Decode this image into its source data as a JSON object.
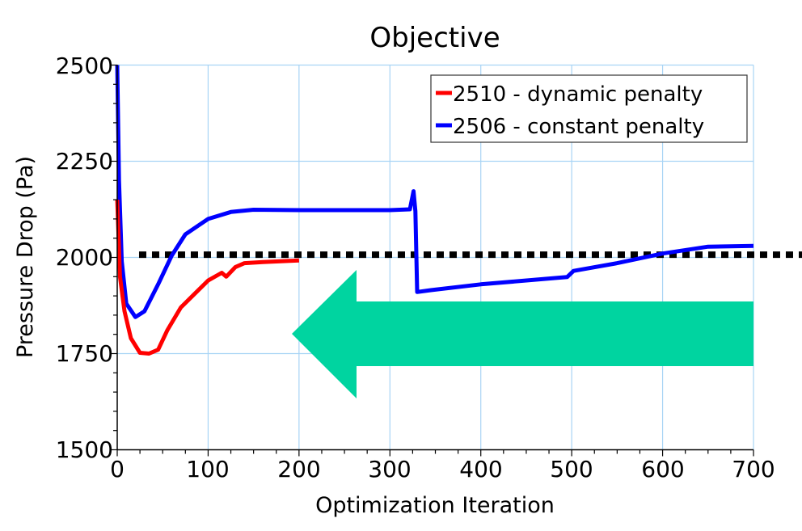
{
  "chart_data": {
    "type": "line",
    "title": "Objective",
    "xlabel": "Optimization Iteration",
    "ylabel": "Pressure Drop (Pa)",
    "xlim": [
      0,
      700
    ],
    "ylim": [
      1500,
      2500
    ],
    "x_ticks": [
      0,
      100,
      200,
      300,
      400,
      500,
      600,
      700
    ],
    "y_ticks": [
      1500,
      1750,
      2000,
      2250,
      2500
    ],
    "grid": true,
    "legend_position": "upper right",
    "series": [
      {
        "name": "2510 - dynamic penalty",
        "color": "#ff0000",
        "x": [
          0,
          3,
          8,
          15,
          25,
          35,
          45,
          55,
          70,
          85,
          100,
          115,
          120,
          130,
          140,
          160,
          180,
          200
        ],
        "y": [
          2150,
          1950,
          1860,
          1790,
          1752,
          1750,
          1760,
          1810,
          1870,
          1905,
          1940,
          1960,
          1950,
          1975,
          1985,
          1988,
          1990,
          1992
        ]
      },
      {
        "name": "2506 - constant penalty",
        "color": "#0000ff",
        "x": [
          0,
          2,
          5,
          10,
          20,
          30,
          45,
          60,
          75,
          100,
          125,
          150,
          200,
          300,
          322,
          326,
          328,
          330,
          345,
          400,
          495,
          502,
          550,
          600,
          650,
          700
        ],
        "y": [
          2500,
          2200,
          1990,
          1880,
          1845,
          1860,
          1930,
          2005,
          2060,
          2100,
          2118,
          2124,
          2123,
          2123,
          2125,
          2172,
          2120,
          1910,
          1915,
          1930,
          1949,
          1965,
          1985,
          2010,
          2028,
          2030
        ]
      }
    ],
    "annotations": [
      {
        "type": "reference-line",
        "style": "dotted",
        "color": "#000000",
        "y": 2007,
        "x_start": 24,
        "x_end": "beyond-axis"
      },
      {
        "type": "arrow",
        "direction": "left",
        "color": "#00d4a0",
        "description": "large left-pointing arrow spanning roughly iterations 190-700 at ~1750-1900 Pa"
      }
    ]
  },
  "labels": {
    "title": "Objective",
    "xlabel": "Optimization Iteration",
    "ylabel": "Pressure Drop (Pa)",
    "x_ticks": [
      "0",
      "100",
      "200",
      "300",
      "400",
      "500",
      "600",
      "700"
    ],
    "y_ticks": [
      "1500",
      "1750",
      "2000",
      "2250",
      "2500"
    ],
    "legend": [
      "2510 - dynamic penalty",
      "2506 - constant penalty"
    ]
  }
}
